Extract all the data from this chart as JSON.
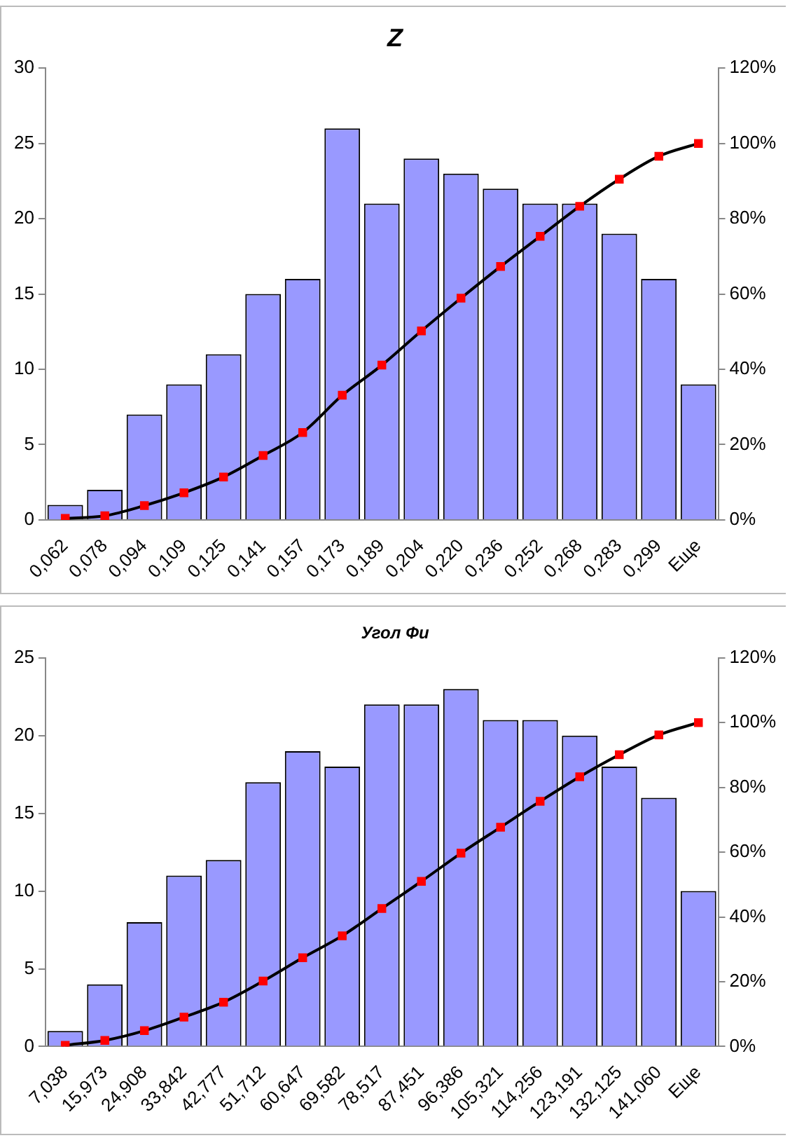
{
  "chart_data": [
    {
      "type": "bar",
      "title": "Z",
      "categories": [
        "0,062",
        "0,078",
        "0,094",
        "0,109",
        "0,125",
        "0,141",
        "0,157",
        "0,173",
        "0,189",
        "0,204",
        "0,220",
        "0,236",
        "0,252",
        "0,268",
        "0,283",
        "0,299",
        "Еще"
      ],
      "series": [
        {
          "color": "#9999ff",
          "values": [
            1,
            2,
            7,
            9,
            11,
            15,
            16,
            26,
            21,
            24,
            23,
            22,
            21,
            21,
            19,
            16,
            9
          ]
        },
        {
          "type": "line",
          "axis": "y2",
          "color": "#000000",
          "colors": [
            "#ff0000",
            "#ff0000",
            "#ff0000",
            "#ff0000",
            "#ff0000",
            "#ff0000",
            "#ff0000",
            "#ff0000",
            "#ff0000",
            "#ff0000",
            "#ff0000",
            "#ff0000",
            "#ff0000",
            "#ff0000",
            "#ff0000",
            "#ff0000",
            "#ff0000"
          ],
          "values": [
            0.4,
            1.1,
            3.8,
            7.2,
            11.4,
            17.1,
            23.2,
            33.1,
            41.1,
            50.2,
            58.9,
            67.3,
            75.3,
            83.3,
            90.5,
            96.6,
            100
          ]
        }
      ],
      "ylim": [
        0,
        30
      ],
      "yticks": [
        0,
        5,
        10,
        15,
        20,
        25,
        30
      ],
      "y2lim": [
        0,
        120
      ],
      "y2ticks": [
        {
          "value": 0,
          "label": "0%"
        },
        {
          "value": 20,
          "label": "20%"
        },
        {
          "value": 40,
          "label": "40%"
        },
        {
          "value": 60,
          "label": "60%"
        },
        {
          "value": 80,
          "label": "80%"
        },
        {
          "value": 100,
          "label": "100%"
        },
        {
          "value": 120,
          "label": "120%"
        }
      ],
      "grid": false,
      "legend": false,
      "marker": "square",
      "line_style": "solid"
    },
    {
      "type": "bar",
      "title": "Угол Фи",
      "categories": [
        "7,038",
        "15,973",
        "24,908",
        "33,842",
        "42,777",
        "51,712",
        "60,647",
        "69,582",
        "78,517",
        "87,451",
        "96,386",
        "105,321",
        "114,256",
        "123,191",
        "132,125",
        "141,060",
        "Еще"
      ],
      "series": [
        {
          "color": "#9999ff",
          "values": [
            1,
            4,
            8,
            11,
            12,
            17,
            19,
            18,
            22,
            22,
            23,
            21,
            21,
            20,
            18,
            16,
            10
          ]
        },
        {
          "type": "line",
          "axis": "y2",
          "color": "#000000",
          "colors": [
            "#ff0000",
            "#ff0000",
            "#ff0000",
            "#ff0000",
            "#ff0000",
            "#ff0000",
            "#ff0000",
            "#ff0000",
            "#ff0000",
            "#ff0000",
            "#ff0000",
            "#ff0000",
            "#ff0000",
            "#ff0000",
            "#ff0000",
            "#ff0000",
            "#ff0000"
          ],
          "values": [
            0.4,
            1.9,
            4.9,
            9.1,
            13.7,
            20.2,
            27.4,
            34.2,
            42.6,
            51.0,
            59.7,
            67.7,
            75.7,
            83.3,
            90.1,
            96.2,
            100
          ]
        }
      ],
      "ylim": [
        0,
        25
      ],
      "yticks": [
        0,
        5,
        10,
        15,
        20,
        25
      ],
      "y2lim": [
        0,
        120
      ],
      "y2ticks": [
        {
          "value": 0,
          "label": "0%"
        },
        {
          "value": 20,
          "label": "20%"
        },
        {
          "value": 40,
          "label": "40%"
        },
        {
          "value": 60,
          "label": "60%"
        },
        {
          "value": 80,
          "label": "80%"
        },
        {
          "value": 100,
          "label": "100%"
        },
        {
          "value": 120,
          "label": "120%"
        }
      ],
      "grid": false,
      "legend": false,
      "marker": "square",
      "line_style": "solid"
    }
  ]
}
